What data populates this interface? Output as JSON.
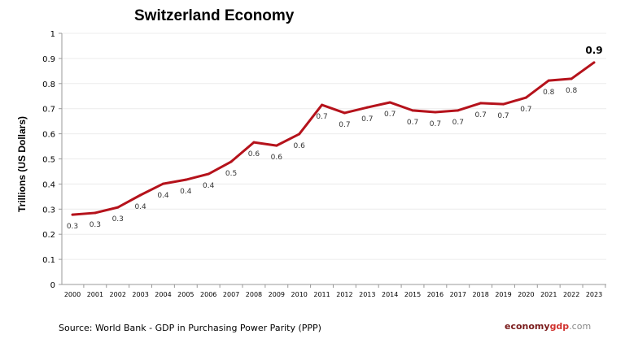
{
  "chart_data": {
    "type": "line",
    "title": "Switzerland Economy",
    "ylabel": "Trillions (US Dollars)",
    "xlabel": "",
    "ylim": [
      0,
      1
    ],
    "yticks": [
      "0",
      "0.1",
      "0.2",
      "0.3",
      "0.4",
      "0.5",
      "0.6",
      "0.7",
      "0.8",
      "0.9",
      "1"
    ],
    "grid": true,
    "line_color": "#b5121b",
    "x": [
      "2000",
      "2001",
      "2002",
      "2003",
      "2004",
      "2005",
      "2006",
      "2007",
      "2008",
      "2009",
      "2010",
      "2011",
      "2012",
      "2013",
      "2014",
      "2015",
      "2016",
      "2017",
      "2018",
      "2019",
      "2020",
      "2021",
      "2022",
      "2023"
    ],
    "values": [
      0.278,
      0.285,
      0.307,
      0.356,
      0.401,
      0.417,
      0.44,
      0.489,
      0.566,
      0.553,
      0.599,
      0.715,
      0.683,
      0.705,
      0.725,
      0.693,
      0.686,
      0.693,
      0.722,
      0.718,
      0.744,
      0.812,
      0.819,
      0.884
    ],
    "data_labels": [
      "0.3",
      "0.3",
      "0.3",
      "0.4",
      "0.4",
      "0.4",
      "0.4",
      "0.5",
      "0.6",
      "0.6",
      "0.6",
      "0.7",
      "0.7",
      "0.7",
      "0.7",
      "0.7",
      "0.7",
      "0.7",
      "0.7",
      "0.7",
      "0.7",
      "0.8",
      "0.8",
      "0.9"
    ]
  },
  "footer": {
    "source": "Source:  World Bank -  GDP  in Purchasing Power Parity (PPP)",
    "brand_part1": "economy",
    "brand_part2": "gdp",
    "brand_part3": ".com"
  }
}
